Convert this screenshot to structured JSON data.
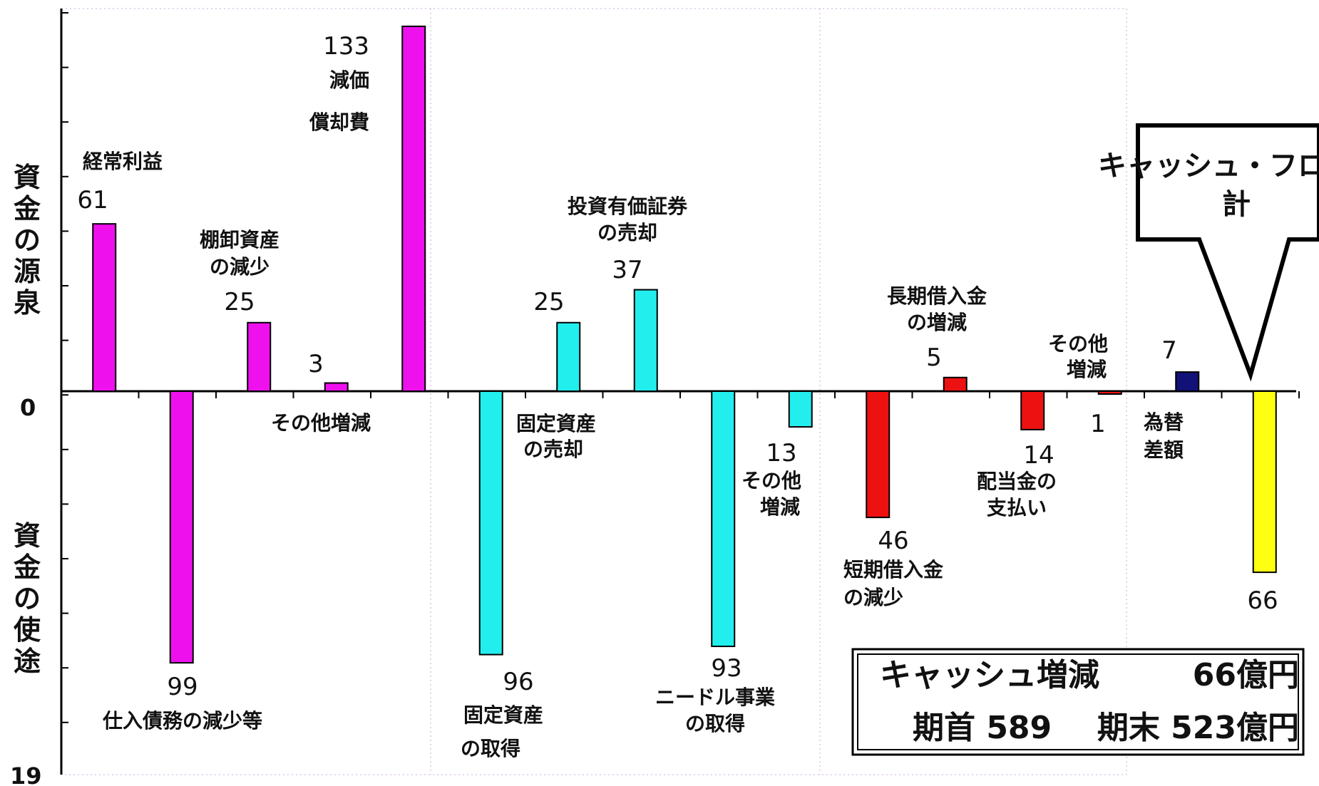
{
  "chart_data": {
    "type": "bar",
    "y_axis": {
      "source_label": "資金の源泉",
      "use_label": "資金の使途",
      "tick_zero": "0",
      "tick_bottom": "19"
    },
    "bars": [
      {
        "id": "b1",
        "value": 61,
        "value_label": "61",
        "label": [
          "経常利益"
        ],
        "color": "#ee11ee"
      },
      {
        "id": "b2",
        "value": -99,
        "value_label": "99",
        "label": [
          "仕入債務の減少等"
        ],
        "color": "#ee11ee"
      },
      {
        "id": "b3",
        "value": 25,
        "value_label": "25",
        "label": [
          "棚卸資産",
          "の減少"
        ],
        "color": "#ee11ee"
      },
      {
        "id": "b4",
        "value": 3,
        "value_label": "3",
        "label": [
          "その他増減"
        ],
        "color": "#ee11ee"
      },
      {
        "id": "b5",
        "value": 133,
        "value_label": "133",
        "label": [
          "減価",
          "償却費"
        ],
        "color": "#ee11ee"
      },
      {
        "id": "b6",
        "value": -96,
        "value_label": "96",
        "label": [
          "固定資産",
          "の取得"
        ],
        "color": "#22eeee"
      },
      {
        "id": "b7",
        "value": 25,
        "value_label": "25",
        "label": [
          "固定資産",
          "の売却"
        ],
        "color": "#22eeee"
      },
      {
        "id": "b8",
        "value": 37,
        "value_label": "37",
        "label": [
          "投資有価証券",
          "の売却"
        ],
        "color": "#22eeee"
      },
      {
        "id": "b9",
        "value": -93,
        "value_label": "93",
        "label": [
          "ニードル事業",
          "の取得"
        ],
        "color": "#22eeee"
      },
      {
        "id": "b10",
        "value": -13,
        "value_label": "13",
        "label": [
          "その他",
          "増減"
        ],
        "color": "#22eeee"
      },
      {
        "id": "b11",
        "value": -46,
        "value_label": "46",
        "label": [
          "短期借入金",
          "の減少"
        ],
        "color": "#ee1111"
      },
      {
        "id": "b12",
        "value": 5,
        "value_label": "5",
        "label": [
          "長期借入金",
          "の増減"
        ],
        "color": "#ee1111"
      },
      {
        "id": "b13",
        "value": -14,
        "value_label": "14",
        "label": [
          "配当金の",
          "支払い"
        ],
        "color": "#ee1111"
      },
      {
        "id": "b14",
        "value": -1,
        "value_label": "1",
        "label": [
          "その他",
          "増減"
        ],
        "color": "#ee1111"
      },
      {
        "id": "b15",
        "value": 7,
        "value_label": "7",
        "label": [
          "為替",
          "差額"
        ],
        "color": "#111177"
      },
      {
        "id": "b16",
        "value": -66,
        "value_label": "66",
        "label": [],
        "color": "#ffff11"
      }
    ],
    "callout": [
      "キャッシュ・フロー",
      "計"
    ],
    "summary": {
      "line1_label": "キャッシュ増減",
      "line1_value": "66億円",
      "line2_start": "期首 589",
      "line2_end": "期末 523億円"
    }
  }
}
